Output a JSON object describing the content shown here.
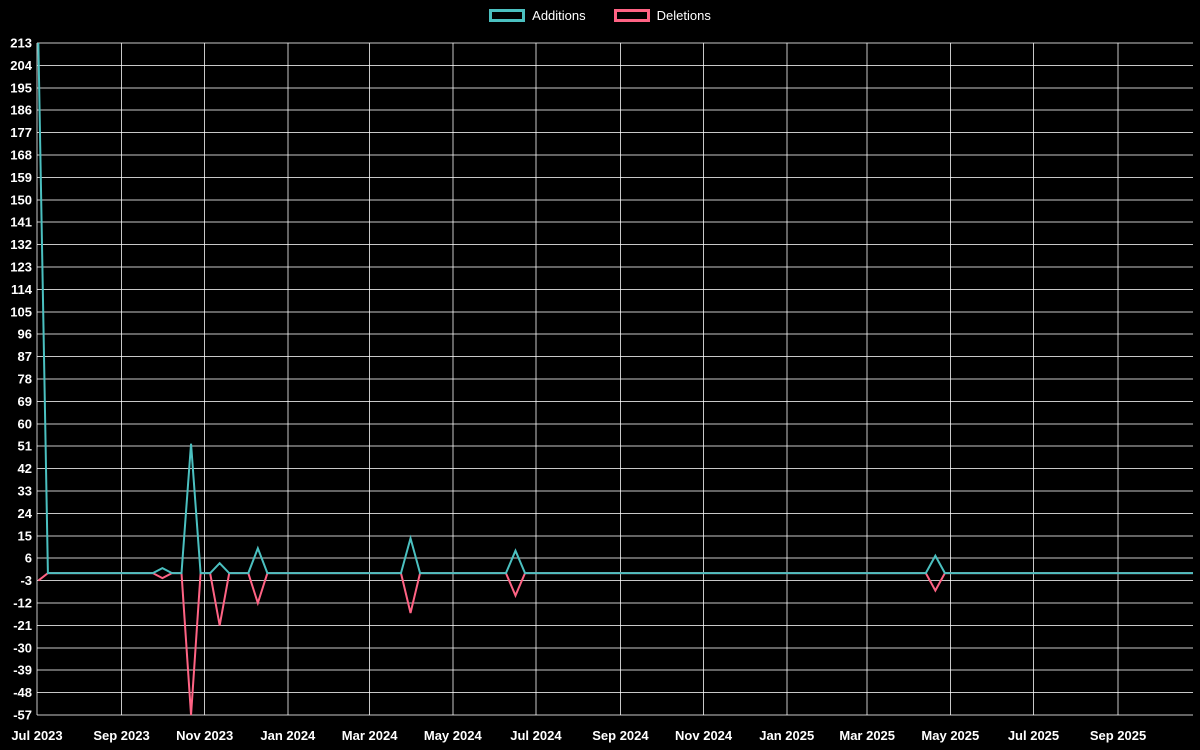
{
  "chart_data": {
    "type": "line",
    "title": "",
    "legend_position": "top",
    "grid": true,
    "background_color": "#000000",
    "text_color": "#ffffff",
    "grid_color": "rgba(255,255,255,0.78)",
    "series": [
      {
        "name": "Additions",
        "color": "#4bc0c0"
      },
      {
        "name": "Deletions",
        "color": "#ff6384"
      }
    ],
    "x_axis": {
      "tick_labels": [
        "Jul 2023",
        "Sep 2023",
        "Nov 2023",
        "Jan 2024",
        "Mar 2024",
        "May 2024",
        "Jul 2024",
        "Sep 2024",
        "Nov 2024",
        "Jan 2025",
        "Mar 2025",
        "May 2025",
        "Jul 2025",
        "Sep 2025"
      ],
      "tick_dates": [
        "2023-07-01",
        "2023-09-01",
        "2023-11-01",
        "2024-01-01",
        "2024-03-01",
        "2024-05-01",
        "2024-07-01",
        "2024-09-01",
        "2024-11-01",
        "2025-01-01",
        "2025-03-01",
        "2025-05-01",
        "2025-07-01",
        "2025-09-01"
      ]
    },
    "y_axis": {
      "min": -57,
      "max": 213,
      "step": 9,
      "ticks": [
        213,
        204,
        195,
        186,
        177,
        168,
        159,
        150,
        141,
        132,
        123,
        114,
        105,
        96,
        87,
        78,
        69,
        60,
        51,
        42,
        33,
        24,
        15,
        6,
        -3,
        -12,
        -21,
        -30,
        -39,
        -48,
        -57
      ]
    },
    "weekly": {
      "start": "2023-07-02",
      "end": "2025-10-26",
      "default_additions": 0,
      "default_deletions": 0,
      "spikes": [
        {
          "week": "2023-07-02",
          "additions": 213,
          "deletions": -3
        },
        {
          "week": "2023-10-01",
          "additions": 2,
          "deletions": -2
        },
        {
          "week": "2023-10-22",
          "additions": 52,
          "deletions": -57
        },
        {
          "week": "2023-11-12",
          "additions": 4,
          "deletions": -21
        },
        {
          "week": "2023-12-10",
          "additions": 10,
          "deletions": -12
        },
        {
          "week": "2024-03-31",
          "additions": 14,
          "deletions": -16
        },
        {
          "week": "2024-06-16",
          "additions": 9,
          "deletions": -9
        },
        {
          "week": "2025-04-20",
          "additions": 7,
          "deletions": -7
        }
      ]
    }
  }
}
